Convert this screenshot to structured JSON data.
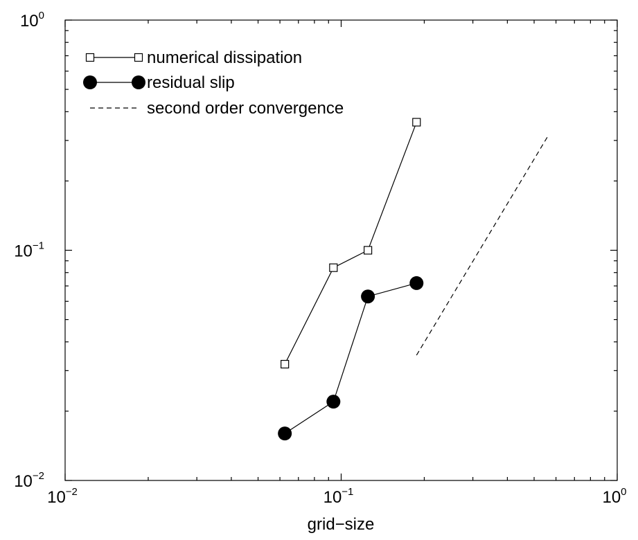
{
  "chart_data": {
    "type": "line",
    "xscale": "log",
    "yscale": "log",
    "xlim": [
      0.01,
      1
    ],
    "ylim": [
      0.01,
      1
    ],
    "xlabel": "grid−size",
    "ylabel": "",
    "title": "",
    "grid": false,
    "legend_position": "top-left",
    "x_ticks": [
      {
        "base": "10",
        "exp": "−2"
      },
      {
        "base": "10",
        "exp": "−1"
      },
      {
        "base": "10",
        "exp": "0"
      }
    ],
    "y_ticks": [
      {
        "base": "10",
        "exp": "−2"
      },
      {
        "base": "10",
        "exp": "−1"
      },
      {
        "base": "10",
        "exp": "0"
      }
    ],
    "series": [
      {
        "name": "numerical dissipation",
        "marker": "open-square",
        "color": "#000000",
        "x": [
          0.0625,
          0.09375,
          0.125,
          0.1875
        ],
        "y": [
          0.032,
          0.084,
          0.1,
          0.36
        ]
      },
      {
        "name": "residual slip",
        "marker": "filled-circle",
        "color": "#000000",
        "x": [
          0.0625,
          0.09375,
          0.125,
          0.1875
        ],
        "y": [
          0.016,
          0.022,
          0.063,
          0.072
        ]
      },
      {
        "name": "second order convergence",
        "marker": "none",
        "line": "dashed",
        "color": "#000000",
        "x": [
          0.1875,
          0.5625
        ],
        "y": [
          0.035,
          0.315
        ]
      }
    ]
  }
}
